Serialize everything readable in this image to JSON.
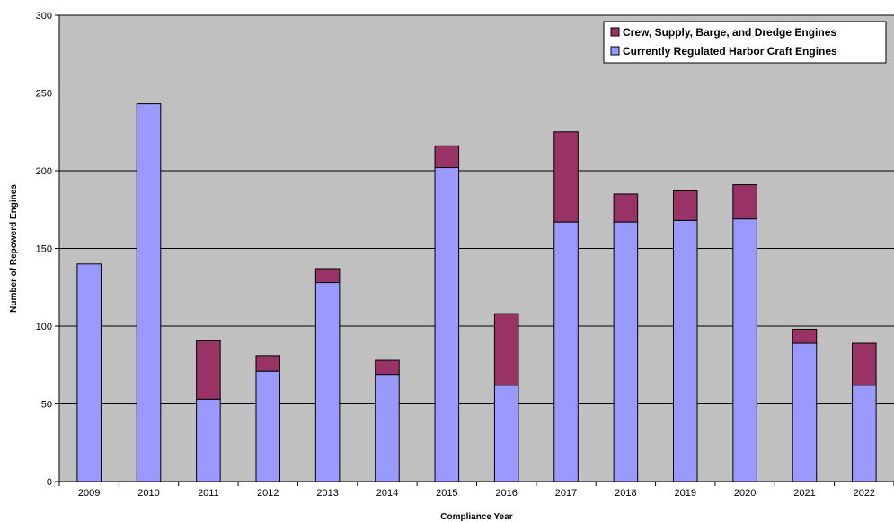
{
  "chart_data": {
    "type": "bar",
    "stacked": true,
    "xlabel": "Compliance Year",
    "ylabel": "Number of Repowerd Engines",
    "ylim": [
      0,
      300
    ],
    "yticks": [
      0,
      50,
      100,
      150,
      200,
      250,
      300
    ],
    "grid": true,
    "legend_position": "top-right",
    "categories": [
      "2009",
      "2010",
      "2011",
      "2012",
      "2013",
      "2014",
      "2015",
      "2016",
      "2017",
      "2018",
      "2019",
      "2020",
      "2021",
      "2022"
    ],
    "series": [
      {
        "name": "Currently Regulated Harbor Craft Engines",
        "color": "#9999FF",
        "values": [
          140,
          243,
          53,
          71,
          128,
          69,
          202,
          62,
          167,
          167,
          168,
          169,
          89,
          62
        ]
      },
      {
        "name": "Crew, Supply, Barge, and Dredge Engines",
        "color": "#993366",
        "values": [
          0,
          0,
          38,
          10,
          9,
          9,
          14,
          46,
          58,
          18,
          19,
          22,
          9,
          27
        ]
      }
    ],
    "plot_background": "#C0C0C0"
  }
}
